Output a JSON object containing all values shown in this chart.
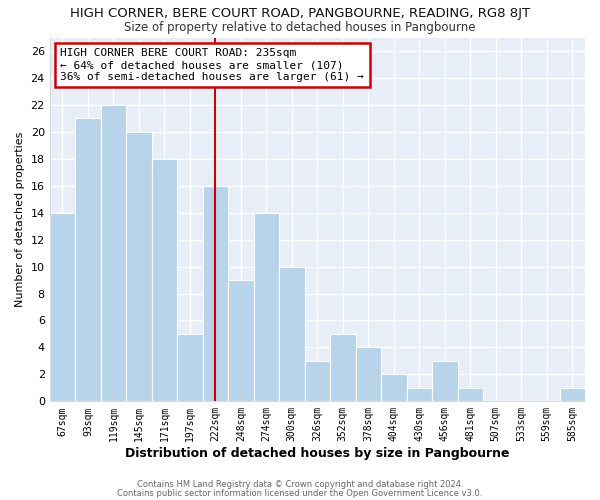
{
  "title": "HIGH CORNER, BERE COURT ROAD, PANGBOURNE, READING, RG8 8JT",
  "subtitle": "Size of property relative to detached houses in Pangbourne",
  "xlabel": "Distribution of detached houses by size in Pangbourne",
  "ylabel": "Number of detached properties",
  "categories": [
    "67sqm",
    "93sqm",
    "119sqm",
    "145sqm",
    "171sqm",
    "197sqm",
    "222sqm",
    "248sqm",
    "274sqm",
    "300sqm",
    "326sqm",
    "352sqm",
    "378sqm",
    "404sqm",
    "430sqm",
    "456sqm",
    "481sqm",
    "507sqm",
    "533sqm",
    "559sqm",
    "585sqm"
  ],
  "values": [
    14,
    21,
    22,
    20,
    18,
    5,
    16,
    9,
    14,
    10,
    3,
    5,
    4,
    2,
    1,
    3,
    1,
    0,
    0,
    0,
    1
  ],
  "bar_color": "#b8d4ea",
  "bar_edge_color": "#ffffff",
  "marker_line_index": 6,
  "marker_line_color": "#cc0000",
  "ylim": [
    0,
    27
  ],
  "yticks": [
    0,
    2,
    4,
    6,
    8,
    10,
    12,
    14,
    16,
    18,
    20,
    22,
    24,
    26
  ],
  "annotation_title": "HIGH CORNER BERE COURT ROAD: 235sqm",
  "annotation_line1": "← 64% of detached houses are smaller (107)",
  "annotation_line2": "36% of semi-detached houses are larger (61) →",
  "annotation_box_color": "#ffffff",
  "annotation_box_edge": "#cc0000",
  "background_color": "#ffffff",
  "plot_bg_color": "#e8eef8",
  "grid_color": "#ffffff",
  "footer1": "Contains HM Land Registry data © Crown copyright and database right 2024.",
  "footer2": "Contains public sector information licensed under the Open Government Licence v3.0."
}
